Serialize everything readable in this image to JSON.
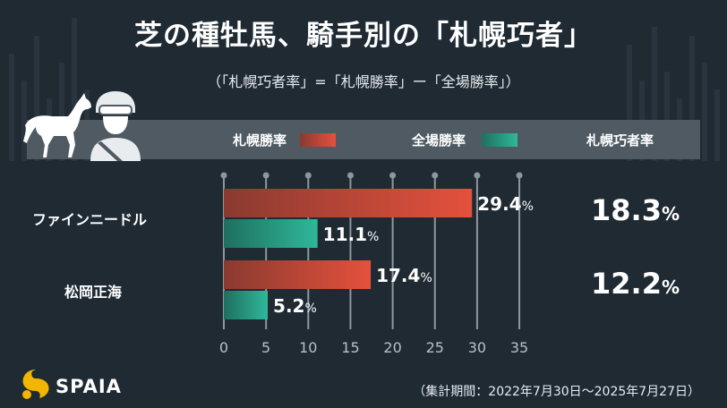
{
  "title": "芝の種牡馬、騎手別の「札幌巧者」",
  "subtitle": "（「札幌巧者率」=「札幌勝率」ー「全場勝率」）",
  "legend": {
    "sapporo": "札幌勝率",
    "all": "全場勝率",
    "index_header": "札幌巧者率"
  },
  "colors": {
    "sapporo_start": "#8a3a31",
    "sapporo_end": "#e5513c",
    "all_start": "#1f6f5e",
    "all_end": "#2fb89a",
    "grid": "#8f979d",
    "background": "#1f2a33"
  },
  "rows": [
    {
      "name": "ファインニードル",
      "index": "18.3",
      "index_unit": "%"
    },
    {
      "name": "松岡正海",
      "index": "12.2",
      "index_unit": "%"
    }
  ],
  "chart_data": {
    "type": "bar",
    "orientation": "horizontal",
    "categories": [
      "ファインニードル",
      "松岡正海"
    ],
    "series": [
      {
        "name": "札幌勝率",
        "values": [
          29.4,
          17.4
        ]
      },
      {
        "name": "全場勝率",
        "values": [
          11.1,
          5.2
        ]
      }
    ],
    "xlim": [
      0,
      35
    ],
    "xticks": [
      0,
      5,
      10,
      15,
      20,
      25,
      30,
      35
    ],
    "unit": "%"
  },
  "footer": {
    "logo_text": "SPAIA",
    "period": "（集計期間：2022年7月30日～2025年7月27日）"
  }
}
